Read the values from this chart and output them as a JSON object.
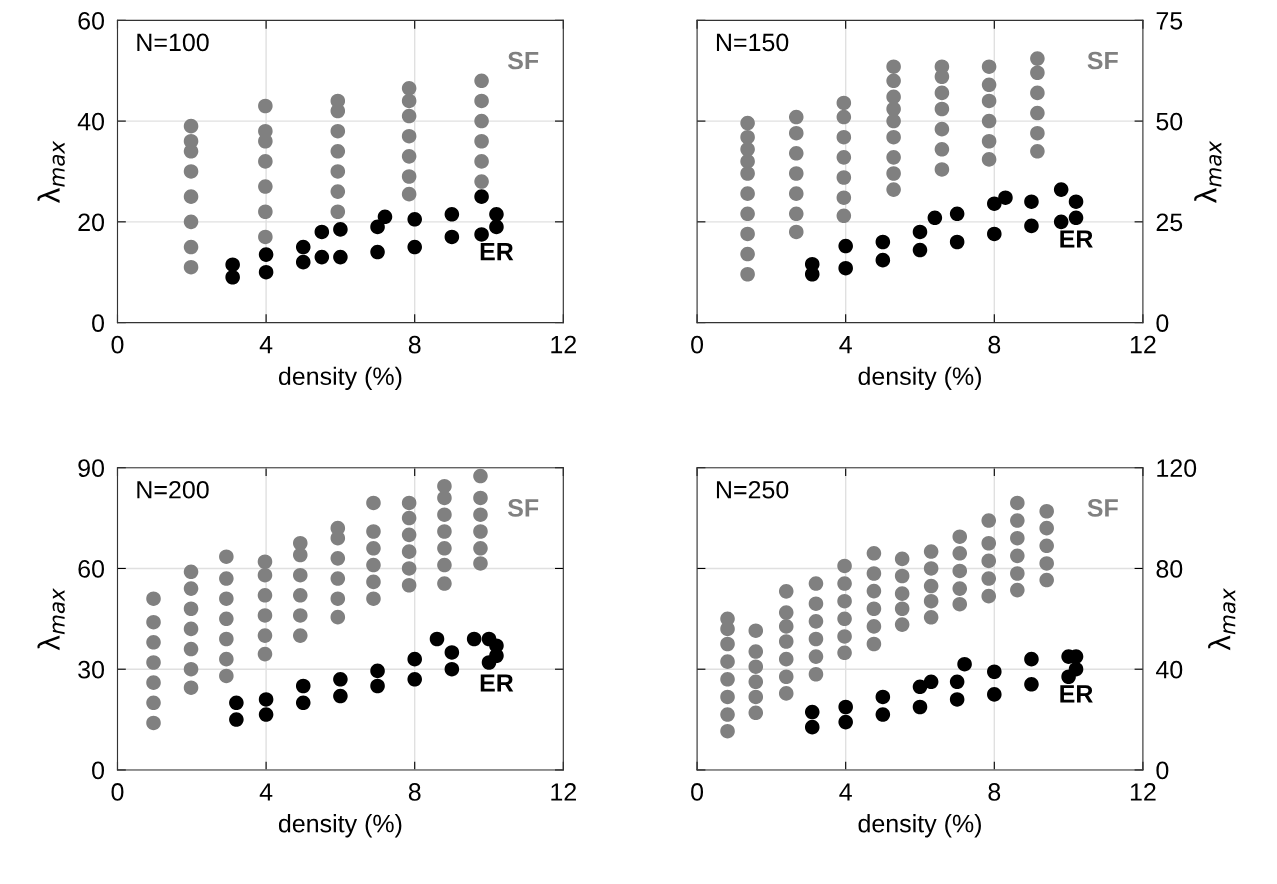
{
  "chart_data": [
    {
      "type": "scatter",
      "annotations": [
        "N=100"
      ],
      "xlabel": "density (%)",
      "ylabel": "λ$_{max}$",
      "xlim": [
        0,
        12
      ],
      "xticks": [
        0,
        4,
        8,
        12
      ],
      "ylim": [
        0,
        60
      ],
      "yticks": [
        0,
        20,
        40,
        60
      ],
      "grid": true,
      "marker": "circle",
      "series": [
        {
          "name": "SF",
          "color": "#808080",
          "x": [
            1.98,
            1.98,
            1.98,
            1.98,
            1.98,
            1.98,
            1.98,
            1.98,
            3.98,
            3.98,
            3.98,
            3.98,
            3.98,
            3.98,
            3.98,
            5.93,
            5.93,
            5.93,
            5.93,
            5.93,
            5.93,
            5.93,
            7.85,
            7.85,
            7.85,
            7.85,
            7.85,
            7.85,
            7.85,
            9.8,
            9.8,
            9.8,
            9.8,
            9.8,
            9.8
          ],
          "values": [
            11,
            15,
            20,
            25,
            30,
            34,
            36,
            39,
            17,
            22,
            27,
            32,
            36,
            38,
            43,
            22,
            26,
            30,
            34,
            38,
            42,
            44,
            25.5,
            29,
            33,
            37,
            41,
            44,
            46.5,
            28,
            32,
            36,
            40,
            44,
            48
          ]
        },
        {
          "name": "ER",
          "color": "#000000",
          "x": [
            3.1,
            3.1,
            4,
            4,
            5,
            5,
            5.5,
            5.5,
            6,
            6,
            7,
            7,
            7.2,
            8,
            8,
            9,
            9,
            9.8,
            9.8,
            10.2,
            10.2
          ],
          "values": [
            9,
            11.5,
            10,
            13.5,
            12,
            15,
            13,
            18,
            13,
            18.5,
            14,
            19,
            21,
            15,
            20.5,
            17,
            21.5,
            17.5,
            25,
            19,
            21.5
          ]
        }
      ]
    },
    {
      "type": "scatter",
      "annotations": [
        "N=150"
      ],
      "xlabel": "density (%)",
      "ylabel": "λ$_{max}$",
      "xlim": [
        0,
        12
      ],
      "xticks": [
        0,
        4,
        8,
        12
      ],
      "ylim": [
        0,
        75
      ],
      "yticks": [
        0,
        25,
        50,
        75
      ],
      "grid": true,
      "marker": "circle",
      "series": [
        {
          "name": "SF",
          "color": "#808080",
          "x": [
            1.36,
            1.36,
            1.36,
            1.36,
            1.36,
            1.36,
            1.36,
            1.36,
            1.36,
            1.36,
            2.67,
            2.67,
            2.67,
            2.67,
            2.67,
            2.67,
            2.67,
            3.95,
            3.95,
            3.95,
            3.95,
            3.95,
            3.95,
            3.95,
            5.29,
            5.29,
            5.29,
            5.29,
            5.29,
            5.29,
            5.29,
            5.29,
            5.29,
            6.59,
            6.59,
            6.59,
            6.59,
            6.59,
            6.59,
            6.59,
            7.86,
            7.86,
            7.86,
            7.86,
            7.86,
            7.86,
            9.16,
            9.16,
            9.16,
            9.16,
            9.16,
            9.16
          ],
          "values": [
            12,
            17,
            22,
            27,
            32,
            37,
            40,
            43,
            46,
            49.5,
            22.5,
            27,
            32,
            37,
            42,
            47,
            51,
            26.5,
            31,
            36,
            41,
            46,
            51,
            54.5,
            33,
            37,
            41,
            46,
            50,
            53,
            56,
            60,
            63.5,
            38,
            43,
            48,
            53,
            57,
            61,
            63.5,
            40.5,
            45,
            50,
            55,
            59,
            63.5,
            42.5,
            47,
            52,
            57,
            62,
            65.5
          ]
        },
        {
          "name": "ER",
          "color": "#000000",
          "x": [
            3.1,
            3.1,
            4,
            4,
            5,
            5,
            6,
            6,
            6.4,
            7,
            7,
            8,
            8,
            8.3,
            9,
            9,
            9.8,
            9.8,
            10.2,
            10.2
          ],
          "values": [
            12,
            14.5,
            13.5,
            19,
            15.5,
            20,
            18,
            22.5,
            26,
            20,
            27,
            22,
            29.5,
            31,
            24,
            30,
            25,
            33,
            26,
            30
          ]
        }
      ]
    },
    {
      "type": "scatter",
      "annotations": [
        "N=200"
      ],
      "xlabel": "density (%)",
      "ylabel": "λ$_{max}$",
      "xlim": [
        0,
        12
      ],
      "xticks": [
        0,
        4,
        8,
        12
      ],
      "ylim": [
        0,
        90
      ],
      "yticks": [
        0,
        30,
        60,
        90
      ],
      "grid": true,
      "marker": "circle",
      "series": [
        {
          "name": "SF",
          "color": "#808080",
          "x": [
            0.97,
            0.97,
            0.97,
            0.97,
            0.97,
            0.97,
            0.97,
            1.98,
            1.98,
            1.98,
            1.98,
            1.98,
            1.98,
            1.98,
            2.93,
            2.93,
            2.93,
            2.93,
            2.93,
            2.93,
            2.93,
            3.97,
            3.97,
            3.97,
            3.97,
            3.97,
            3.97,
            4.92,
            4.92,
            4.92,
            4.92,
            4.92,
            4.92,
            5.93,
            5.93,
            5.93,
            5.93,
            5.93,
            5.93,
            6.89,
            6.89,
            6.89,
            6.89,
            6.89,
            6.89,
            7.85,
            7.85,
            7.85,
            7.85,
            7.85,
            7.85,
            8.8,
            8.8,
            8.8,
            8.8,
            8.8,
            8.8,
            8.8,
            9.77,
            9.77,
            9.77,
            9.77,
            9.77,
            9.77
          ],
          "values": [
            14,
            20,
            26,
            32,
            38,
            44,
            51,
            24.5,
            30,
            36,
            42,
            48,
            54,
            59,
            28,
            33,
            39,
            45,
            51,
            57,
            63.5,
            34.5,
            40,
            46,
            52,
            58,
            62,
            40,
            46,
            52,
            58,
            64,
            67.5,
            45.5,
            51,
            57,
            63,
            69,
            72,
            51,
            56,
            61,
            66,
            71,
            79.5,
            55,
            60,
            65,
            70,
            75,
            79.5,
            55.5,
            61,
            66,
            71,
            76,
            81,
            84.5,
            61.5,
            66,
            71,
            76,
            81,
            87.5
          ]
        },
        {
          "name": "ER",
          "color": "#000000",
          "x": [
            3.2,
            3.2,
            4,
            4,
            5,
            5,
            6,
            6,
            7,
            7,
            8,
            8,
            8.6,
            9,
            9,
            9.6,
            10,
            10,
            10.2,
            10.2
          ],
          "values": [
            15,
            20,
            16.5,
            21,
            20,
            25,
            22,
            27,
            25,
            29.5,
            27,
            33,
            39,
            30,
            35,
            39,
            32,
            39,
            34,
            37
          ]
        }
      ]
    },
    {
      "type": "scatter",
      "annotations": [
        "N=250"
      ],
      "xlabel": "density (%)",
      "ylabel": "λ$_{max}$",
      "xlim": [
        0,
        12
      ],
      "xticks": [
        0,
        4,
        8,
        12
      ],
      "ylim": [
        0,
        120
      ],
      "yticks": [
        0,
        40,
        80,
        120
      ],
      "grid": true,
      "marker": "circle",
      "series": [
        {
          "name": "SF",
          "color": "#808080",
          "x": [
            0.82,
            0.82,
            0.82,
            0.82,
            0.82,
            0.82,
            0.82,
            0.82,
            1.58,
            1.58,
            1.58,
            1.58,
            1.58,
            1.58,
            2.4,
            2.4,
            2.4,
            2.4,
            2.4,
            2.4,
            2.4,
            3.2,
            3.2,
            3.2,
            3.2,
            3.2,
            3.2,
            3.97,
            3.97,
            3.97,
            3.97,
            3.97,
            3.97,
            4.76,
            4.76,
            4.76,
            4.76,
            4.76,
            4.76,
            5.52,
            5.52,
            5.52,
            5.52,
            5.52,
            6.3,
            6.3,
            6.3,
            6.3,
            6.3,
            7.07,
            7.07,
            7.07,
            7.07,
            7.07,
            7.85,
            7.85,
            7.85,
            7.85,
            7.85,
            8.62,
            8.62,
            8.62,
            8.62,
            8.62,
            8.62,
            9.41,
            9.41,
            9.41,
            9.41,
            9.41
          ],
          "values": [
            15.4,
            22,
            29,
            36,
            43,
            50,
            56,
            60,
            22.7,
            29,
            35,
            41,
            47,
            55.3,
            30.4,
            37,
            44,
            51,
            57,
            62.5,
            70.9,
            38,
            45,
            52,
            59,
            66,
            74,
            46.5,
            53,
            60,
            67,
            74,
            81,
            50,
            57,
            64,
            71,
            78,
            86,
            57.7,
            64,
            70,
            77,
            83.8,
            60.6,
            67,
            73,
            80,
            86.7,
            65.8,
            72,
            79,
            86,
            92.6,
            69,
            76,
            83,
            90,
            99,
            71.4,
            78,
            85,
            92,
            99,
            106,
            75.4,
            82,
            89,
            96,
            102.7
          ]
        },
        {
          "name": "ER",
          "color": "#000000",
          "x": [
            3.1,
            3.1,
            4,
            4,
            5,
            5,
            6,
            6,
            6.3,
            7,
            7,
            7.2,
            8,
            8,
            9,
            9,
            10,
            10,
            10.2,
            10.2
          ],
          "values": [
            17,
            23,
            19,
            25,
            22,
            29,
            25,
            33,
            35,
            28,
            35,
            42,
            30,
            39,
            34,
            44,
            37,
            45,
            40,
            45
          ]
        }
      ]
    }
  ]
}
